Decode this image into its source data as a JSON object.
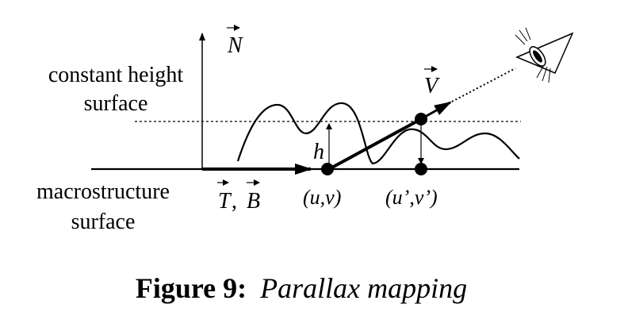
{
  "diagram": {
    "labels": {
      "normal_vector": "N",
      "view_vector": "V",
      "tangent_vector": "T",
      "binormal_vector": "B",
      "tb_separator": ",",
      "height": "h",
      "point_uv": "(u,v)",
      "point_uv_prime": "(u’,v’)",
      "constant_height_line1": "constant height",
      "constant_height_line2": "surface",
      "macrostructure_line1": "macrostructure",
      "macrostructure_line2": "surface"
    },
    "caption": {
      "prefix": "Figure 9:",
      "title": "Parallax mapping"
    },
    "icons": {
      "eye": "eye-icon"
    }
  }
}
